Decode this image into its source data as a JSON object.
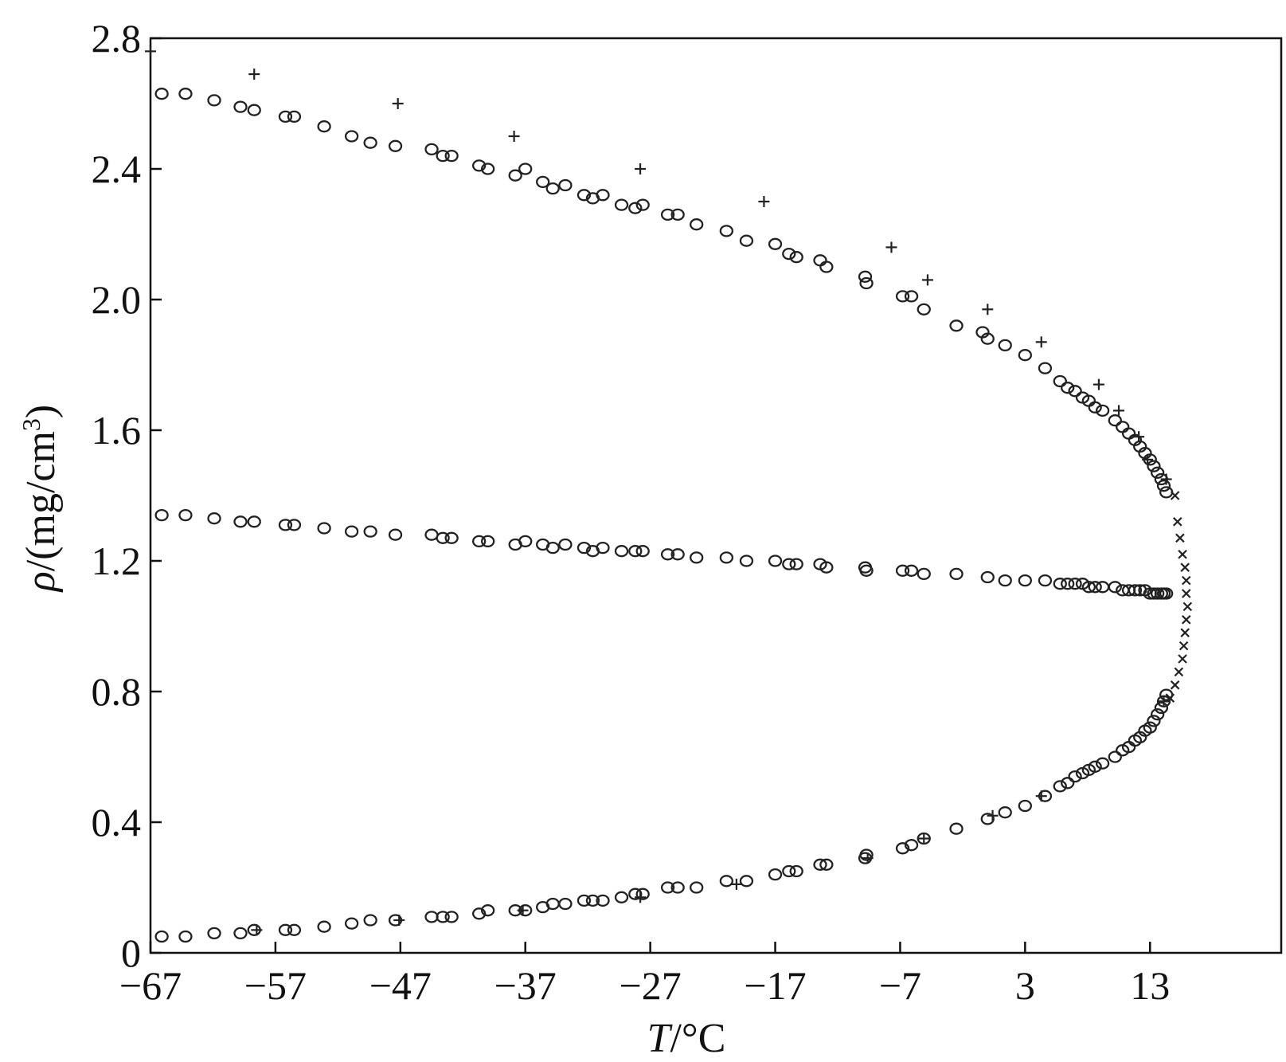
{
  "chart_data": {
    "type": "scatter",
    "title": "",
    "xlabel_italic": "T",
    "xlabel_rest": "/°C",
    "ylabel_italic": "ρ",
    "ylabel_rest": "/(mg/cm",
    "ylabel_sup": "3",
    "ylabel_close": ")",
    "xlim": [
      -67,
      23.5
    ],
    "ylim": [
      0,
      2.8
    ],
    "xticks": [
      -67,
      -57,
      -47,
      -37,
      -27,
      -17,
      -7,
      3,
      13
    ],
    "xtick_labels": [
      "−67",
      "−57",
      "−47",
      "−37",
      "−27",
      "−17",
      "−7",
      "3",
      "13"
    ],
    "yticks": [
      0,
      0.4,
      0.8,
      1.2,
      1.6,
      2.0,
      2.4,
      2.8
    ],
    "ytick_labels": [
      "0",
      "0.4",
      "0.8",
      "1.2",
      "1.6",
      "2.0",
      "2.4",
      "2.8"
    ],
    "grid": false,
    "series": [
      {
        "marker": "circle",
        "points": [
          [
            -66.1,
            2.63
          ],
          [
            -64.2,
            2.63
          ],
          [
            -61.9,
            2.61
          ],
          [
            -59.8,
            2.59
          ],
          [
            -58.7,
            2.58
          ],
          [
            -56.2,
            2.56
          ],
          [
            -55.5,
            2.56
          ],
          [
            -53.1,
            2.53
          ],
          [
            -50.9,
            2.5
          ],
          [
            -49.4,
            2.48
          ],
          [
            -47.4,
            2.47
          ],
          [
            -44.5,
            2.46
          ],
          [
            -43.6,
            2.44
          ],
          [
            -42.9,
            2.44
          ],
          [
            -40.7,
            2.41
          ],
          [
            -40.0,
            2.4
          ],
          [
            -37.8,
            2.38
          ],
          [
            -37.0,
            2.4
          ],
          [
            -35.6,
            2.36
          ],
          [
            -34.8,
            2.34
          ],
          [
            -33.8,
            2.35
          ],
          [
            -32.3,
            2.32
          ],
          [
            -31.6,
            2.31
          ],
          [
            -30.8,
            2.32
          ],
          [
            -29.3,
            2.29
          ],
          [
            -28.2,
            2.28
          ],
          [
            -27.6,
            2.29
          ],
          [
            -25.6,
            2.26
          ],
          [
            -24.8,
            2.26
          ],
          [
            -23.3,
            2.23
          ],
          [
            -20.9,
            2.21
          ],
          [
            -19.3,
            2.18
          ],
          [
            -17.0,
            2.17
          ],
          [
            -15.9,
            2.14
          ],
          [
            -15.3,
            2.13
          ],
          [
            -13.4,
            2.12
          ],
          [
            -12.9,
            2.1
          ],
          [
            -9.8,
            2.07
          ],
          [
            -9.7,
            2.05
          ],
          [
            -6.8,
            2.01
          ],
          [
            -6.1,
            2.01
          ],
          [
            -5.1,
            1.97
          ],
          [
            -2.5,
            1.92
          ],
          [
            -0.4,
            1.9
          ],
          [
            0.0,
            1.88
          ],
          [
            1.4,
            1.86
          ],
          [
            3.0,
            1.83
          ],
          [
            4.6,
            1.79
          ],
          [
            5.8,
            1.75
          ],
          [
            6.4,
            1.73
          ],
          [
            7.0,
            1.72
          ],
          [
            7.6,
            1.7
          ],
          [
            8.1,
            1.69
          ],
          [
            8.6,
            1.67
          ],
          [
            9.2,
            1.66
          ],
          [
            10.2,
            1.63
          ],
          [
            10.8,
            1.61
          ],
          [
            11.3,
            1.59
          ],
          [
            11.8,
            1.57
          ],
          [
            12.2,
            1.55
          ],
          [
            12.6,
            1.53
          ],
          [
            13.0,
            1.51
          ],
          [
            13.3,
            1.49
          ],
          [
            13.6,
            1.47
          ],
          [
            13.9,
            1.45
          ],
          [
            14.1,
            1.43
          ],
          [
            14.3,
            1.41
          ],
          [
            -66.1,
            1.34
          ],
          [
            -64.2,
            1.34
          ],
          [
            -61.9,
            1.33
          ],
          [
            -59.8,
            1.32
          ],
          [
            -58.7,
            1.32
          ],
          [
            -56.2,
            1.31
          ],
          [
            -55.5,
            1.31
          ],
          [
            -53.1,
            1.3
          ],
          [
            -50.9,
            1.29
          ],
          [
            -49.4,
            1.29
          ],
          [
            -47.4,
            1.28
          ],
          [
            -44.5,
            1.28
          ],
          [
            -43.6,
            1.27
          ],
          [
            -42.9,
            1.27
          ],
          [
            -40.7,
            1.26
          ],
          [
            -40.0,
            1.26
          ],
          [
            -37.8,
            1.25
          ],
          [
            -37.0,
            1.26
          ],
          [
            -35.6,
            1.25
          ],
          [
            -34.8,
            1.24
          ],
          [
            -33.8,
            1.25
          ],
          [
            -32.3,
            1.24
          ],
          [
            -31.6,
            1.23
          ],
          [
            -30.8,
            1.24
          ],
          [
            -29.3,
            1.23
          ],
          [
            -28.2,
            1.23
          ],
          [
            -27.6,
            1.23
          ],
          [
            -25.6,
            1.22
          ],
          [
            -24.8,
            1.22
          ],
          [
            -23.3,
            1.21
          ],
          [
            -20.9,
            1.21
          ],
          [
            -19.3,
            1.2
          ],
          [
            -17.0,
            1.2
          ],
          [
            -15.9,
            1.19
          ],
          [
            -15.3,
            1.19
          ],
          [
            -13.4,
            1.19
          ],
          [
            -12.9,
            1.18
          ],
          [
            -9.8,
            1.18
          ],
          [
            -9.7,
            1.17
          ],
          [
            -6.8,
            1.17
          ],
          [
            -6.1,
            1.17
          ],
          [
            -5.1,
            1.16
          ],
          [
            -2.5,
            1.16
          ],
          [
            0.0,
            1.15
          ],
          [
            1.4,
            1.14
          ],
          [
            3.0,
            1.14
          ],
          [
            4.6,
            1.14
          ],
          [
            5.8,
            1.13
          ],
          [
            6.4,
            1.13
          ],
          [
            7.0,
            1.13
          ],
          [
            7.6,
            1.13
          ],
          [
            8.1,
            1.12
          ],
          [
            8.6,
            1.12
          ],
          [
            9.2,
            1.12
          ],
          [
            10.2,
            1.12
          ],
          [
            10.8,
            1.11
          ],
          [
            11.3,
            1.11
          ],
          [
            11.8,
            1.11
          ],
          [
            12.2,
            1.11
          ],
          [
            12.6,
            1.11
          ],
          [
            13.0,
            1.1
          ],
          [
            13.3,
            1.1
          ],
          [
            13.6,
            1.1
          ],
          [
            13.9,
            1.1
          ],
          [
            14.1,
            1.1
          ],
          [
            14.3,
            1.1
          ],
          [
            -66.1,
            0.05
          ],
          [
            -64.2,
            0.05
          ],
          [
            -61.9,
            0.06
          ],
          [
            -59.8,
            0.06
          ],
          [
            -58.7,
            0.07
          ],
          [
            -56.2,
            0.07
          ],
          [
            -55.5,
            0.07
          ],
          [
            -53.1,
            0.08
          ],
          [
            -50.9,
            0.09
          ],
          [
            -49.4,
            0.1
          ],
          [
            -47.4,
            0.1
          ],
          [
            -44.5,
            0.11
          ],
          [
            -43.6,
            0.11
          ],
          [
            -42.9,
            0.11
          ],
          [
            -40.7,
            0.12
          ],
          [
            -40.0,
            0.13
          ],
          [
            -37.8,
            0.13
          ],
          [
            -37.0,
            0.13
          ],
          [
            -35.6,
            0.14
          ],
          [
            -34.8,
            0.15
          ],
          [
            -33.8,
            0.15
          ],
          [
            -32.3,
            0.16
          ],
          [
            -31.6,
            0.16
          ],
          [
            -30.8,
            0.16
          ],
          [
            -29.3,
            0.17
          ],
          [
            -28.2,
            0.18
          ],
          [
            -27.6,
            0.18
          ],
          [
            -25.6,
            0.2
          ],
          [
            -24.8,
            0.2
          ],
          [
            -23.3,
            0.2
          ],
          [
            -20.9,
            0.22
          ],
          [
            -19.3,
            0.22
          ],
          [
            -17.0,
            0.24
          ],
          [
            -15.9,
            0.25
          ],
          [
            -15.3,
            0.25
          ],
          [
            -13.4,
            0.27
          ],
          [
            -12.9,
            0.27
          ],
          [
            -9.8,
            0.29
          ],
          [
            -9.7,
            0.3
          ],
          [
            -6.8,
            0.32
          ],
          [
            -6.1,
            0.33
          ],
          [
            -5.1,
            0.35
          ],
          [
            -2.5,
            0.38
          ],
          [
            0.0,
            0.41
          ],
          [
            1.4,
            0.43
          ],
          [
            3.0,
            0.45
          ],
          [
            4.6,
            0.48
          ],
          [
            5.8,
            0.51
          ],
          [
            6.4,
            0.52
          ],
          [
            7.0,
            0.54
          ],
          [
            7.6,
            0.55
          ],
          [
            8.1,
            0.56
          ],
          [
            8.6,
            0.57
          ],
          [
            9.2,
            0.58
          ],
          [
            10.2,
            0.6
          ],
          [
            10.8,
            0.62
          ],
          [
            11.3,
            0.63
          ],
          [
            11.8,
            0.65
          ],
          [
            12.2,
            0.66
          ],
          [
            12.6,
            0.68
          ],
          [
            13.0,
            0.69
          ],
          [
            13.3,
            0.71
          ],
          [
            13.6,
            0.73
          ],
          [
            13.9,
            0.75
          ],
          [
            14.1,
            0.77
          ],
          [
            14.3,
            0.79
          ]
        ]
      },
      {
        "marker": "plus",
        "points": [
          [
            -67.0,
            2.76
          ],
          [
            -58.7,
            2.69
          ],
          [
            -47.2,
            2.6
          ],
          [
            -37.9,
            2.5
          ],
          [
            -27.8,
            2.4
          ],
          [
            -17.9,
            2.3
          ],
          [
            -7.7,
            2.16
          ],
          [
            -4.8,
            2.06
          ],
          [
            0.0,
            1.97
          ],
          [
            4.3,
            1.87
          ],
          [
            8.9,
            1.74
          ],
          [
            10.5,
            1.66
          ],
          [
            12.1,
            1.58
          ],
          [
            12.8,
            1.51
          ],
          [
            14.3,
            1.45
          ],
          [
            -58.5,
            0.07
          ],
          [
            -47.1,
            0.1
          ],
          [
            -37.2,
            0.13
          ],
          [
            -27.8,
            0.17
          ],
          [
            -20.1,
            0.21
          ],
          [
            -9.6,
            0.29
          ],
          [
            -5.1,
            0.35
          ],
          [
            0.4,
            0.42
          ],
          [
            4.3,
            0.48
          ],
          [
            14.1,
            0.77
          ]
        ]
      },
      {
        "marker": "cross",
        "points": [
          [
            15.0,
            1.4
          ],
          [
            15.2,
            1.32
          ],
          [
            15.4,
            1.27
          ],
          [
            15.6,
            1.22
          ],
          [
            15.8,
            1.18
          ],
          [
            15.9,
            1.14
          ],
          [
            15.9,
            1.1
          ],
          [
            16.0,
            1.06
          ],
          [
            15.9,
            1.02
          ],
          [
            15.8,
            0.98
          ],
          [
            15.7,
            0.94
          ],
          [
            15.6,
            0.9
          ],
          [
            15.3,
            0.86
          ],
          [
            15.0,
            0.82
          ],
          [
            14.6,
            0.78
          ]
        ]
      }
    ]
  }
}
